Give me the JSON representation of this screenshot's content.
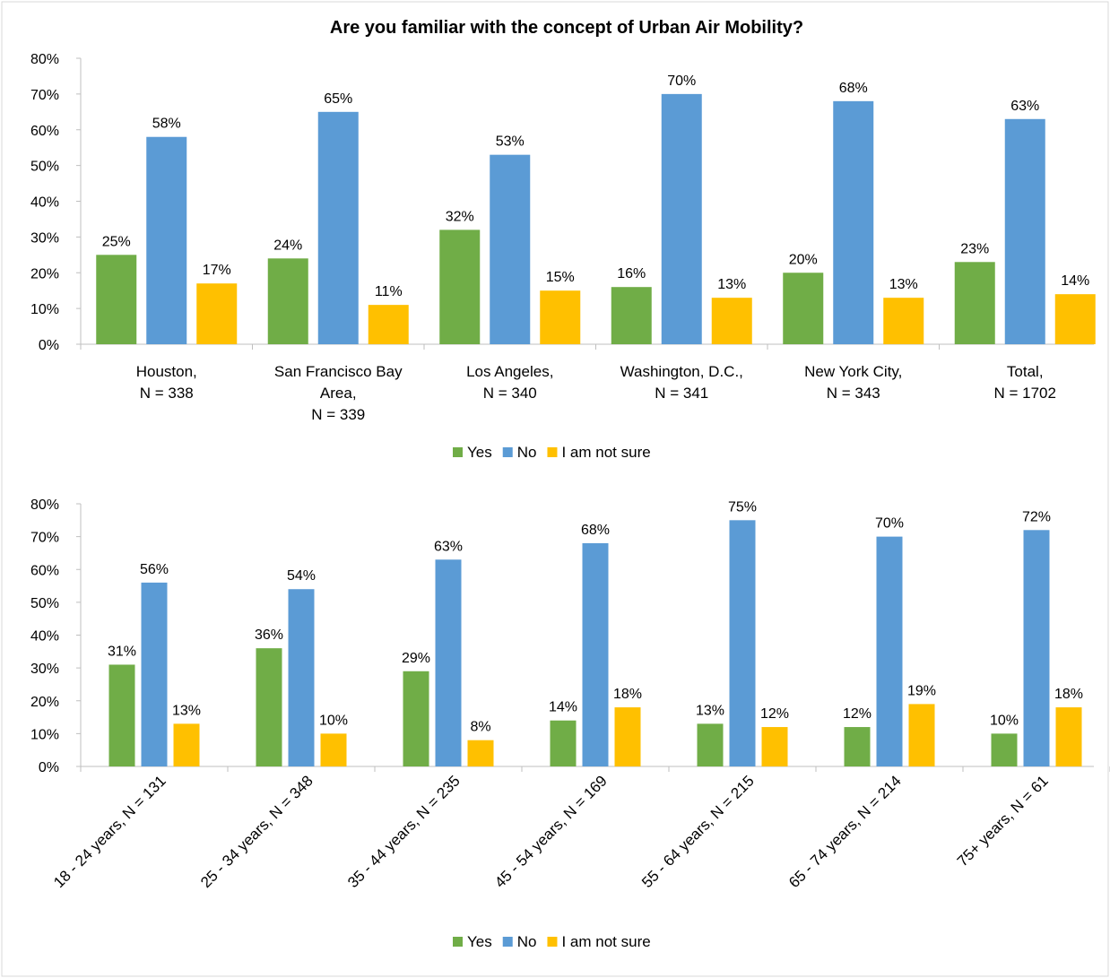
{
  "title": "Are you familiar with the concept of Urban Air Mobility?",
  "colors": {
    "Yes": "#70ad47",
    "No": "#5b9bd5",
    "I am not sure": "#ffc000"
  },
  "chart_data": [
    {
      "type": "bar",
      "title": "Are you familiar with the concept of Urban Air Mobility?",
      "categories": [
        [
          "Houston,",
          "N = 338"
        ],
        [
          "San Francisco Bay",
          "Area,",
          "N = 339"
        ],
        [
          "Los Angeles,",
          "N = 340"
        ],
        [
          "Washington, D.C.,",
          "N = 341"
        ],
        [
          "New York City,",
          "N = 343"
        ],
        [
          "Total,",
          "N = 1702"
        ]
      ],
      "series": [
        {
          "name": "Yes",
          "values": [
            25,
            24,
            32,
            16,
            20,
            23
          ],
          "labels": [
            "25%",
            "24%",
            "32%",
            "16%",
            "20%",
            "23%"
          ]
        },
        {
          "name": "No",
          "values": [
            58,
            65,
            53,
            70,
            68,
            63
          ],
          "labels": [
            "58%",
            "65%",
            "53%",
            "70%",
            "68%",
            "63%"
          ]
        },
        {
          "name": "I am not sure",
          "values": [
            17,
            11,
            15,
            13,
            13,
            14
          ],
          "labels": [
            "17%",
            "11%",
            "15%",
            "13%",
            "13%",
            "14%"
          ]
        }
      ],
      "ylim": [
        0,
        80
      ],
      "yticks": [
        "0%",
        "10%",
        "20%",
        "30%",
        "40%",
        "50%",
        "60%",
        "70%",
        "80%"
      ],
      "legend": [
        "Yes",
        "No",
        "I am not sure"
      ],
      "legend_position": "bottom",
      "grid": false
    },
    {
      "type": "bar",
      "categories": [
        "18 - 24 years, N = 131",
        "25 - 34 years, N = 348",
        "35 - 44 years, N = 235",
        "45 - 54 years, N = 169",
        "55 - 64 years, N = 215",
        "65 - 74 years, N = 214",
        "75+ years, N = 61"
      ],
      "series": [
        {
          "name": "Yes",
          "values": [
            31,
            36,
            29,
            14,
            13,
            12,
            10
          ],
          "labels": [
            "31%",
            "36%",
            "29%",
            "14%",
            "13%",
            "12%",
            "10%"
          ]
        },
        {
          "name": "No",
          "values": [
            56,
            54,
            63,
            68,
            75,
            70,
            72
          ],
          "labels": [
            "56%",
            "54%",
            "63%",
            "68%",
            "75%",
            "70%",
            "72%"
          ]
        },
        {
          "name": "I am not sure",
          "values": [
            13,
            10,
            8,
            18,
            12,
            19,
            18
          ],
          "labels": [
            "13%",
            "10%",
            "8%",
            "18%",
            "12%",
            "19%",
            "18%"
          ]
        }
      ],
      "ylim": [
        0,
        80
      ],
      "yticks": [
        "0%",
        "10%",
        "20%",
        "30%",
        "40%",
        "50%",
        "60%",
        "70%",
        "80%"
      ],
      "legend": [
        "Yes",
        "No",
        "I am not sure"
      ],
      "legend_position": "bottom",
      "grid": false
    }
  ]
}
